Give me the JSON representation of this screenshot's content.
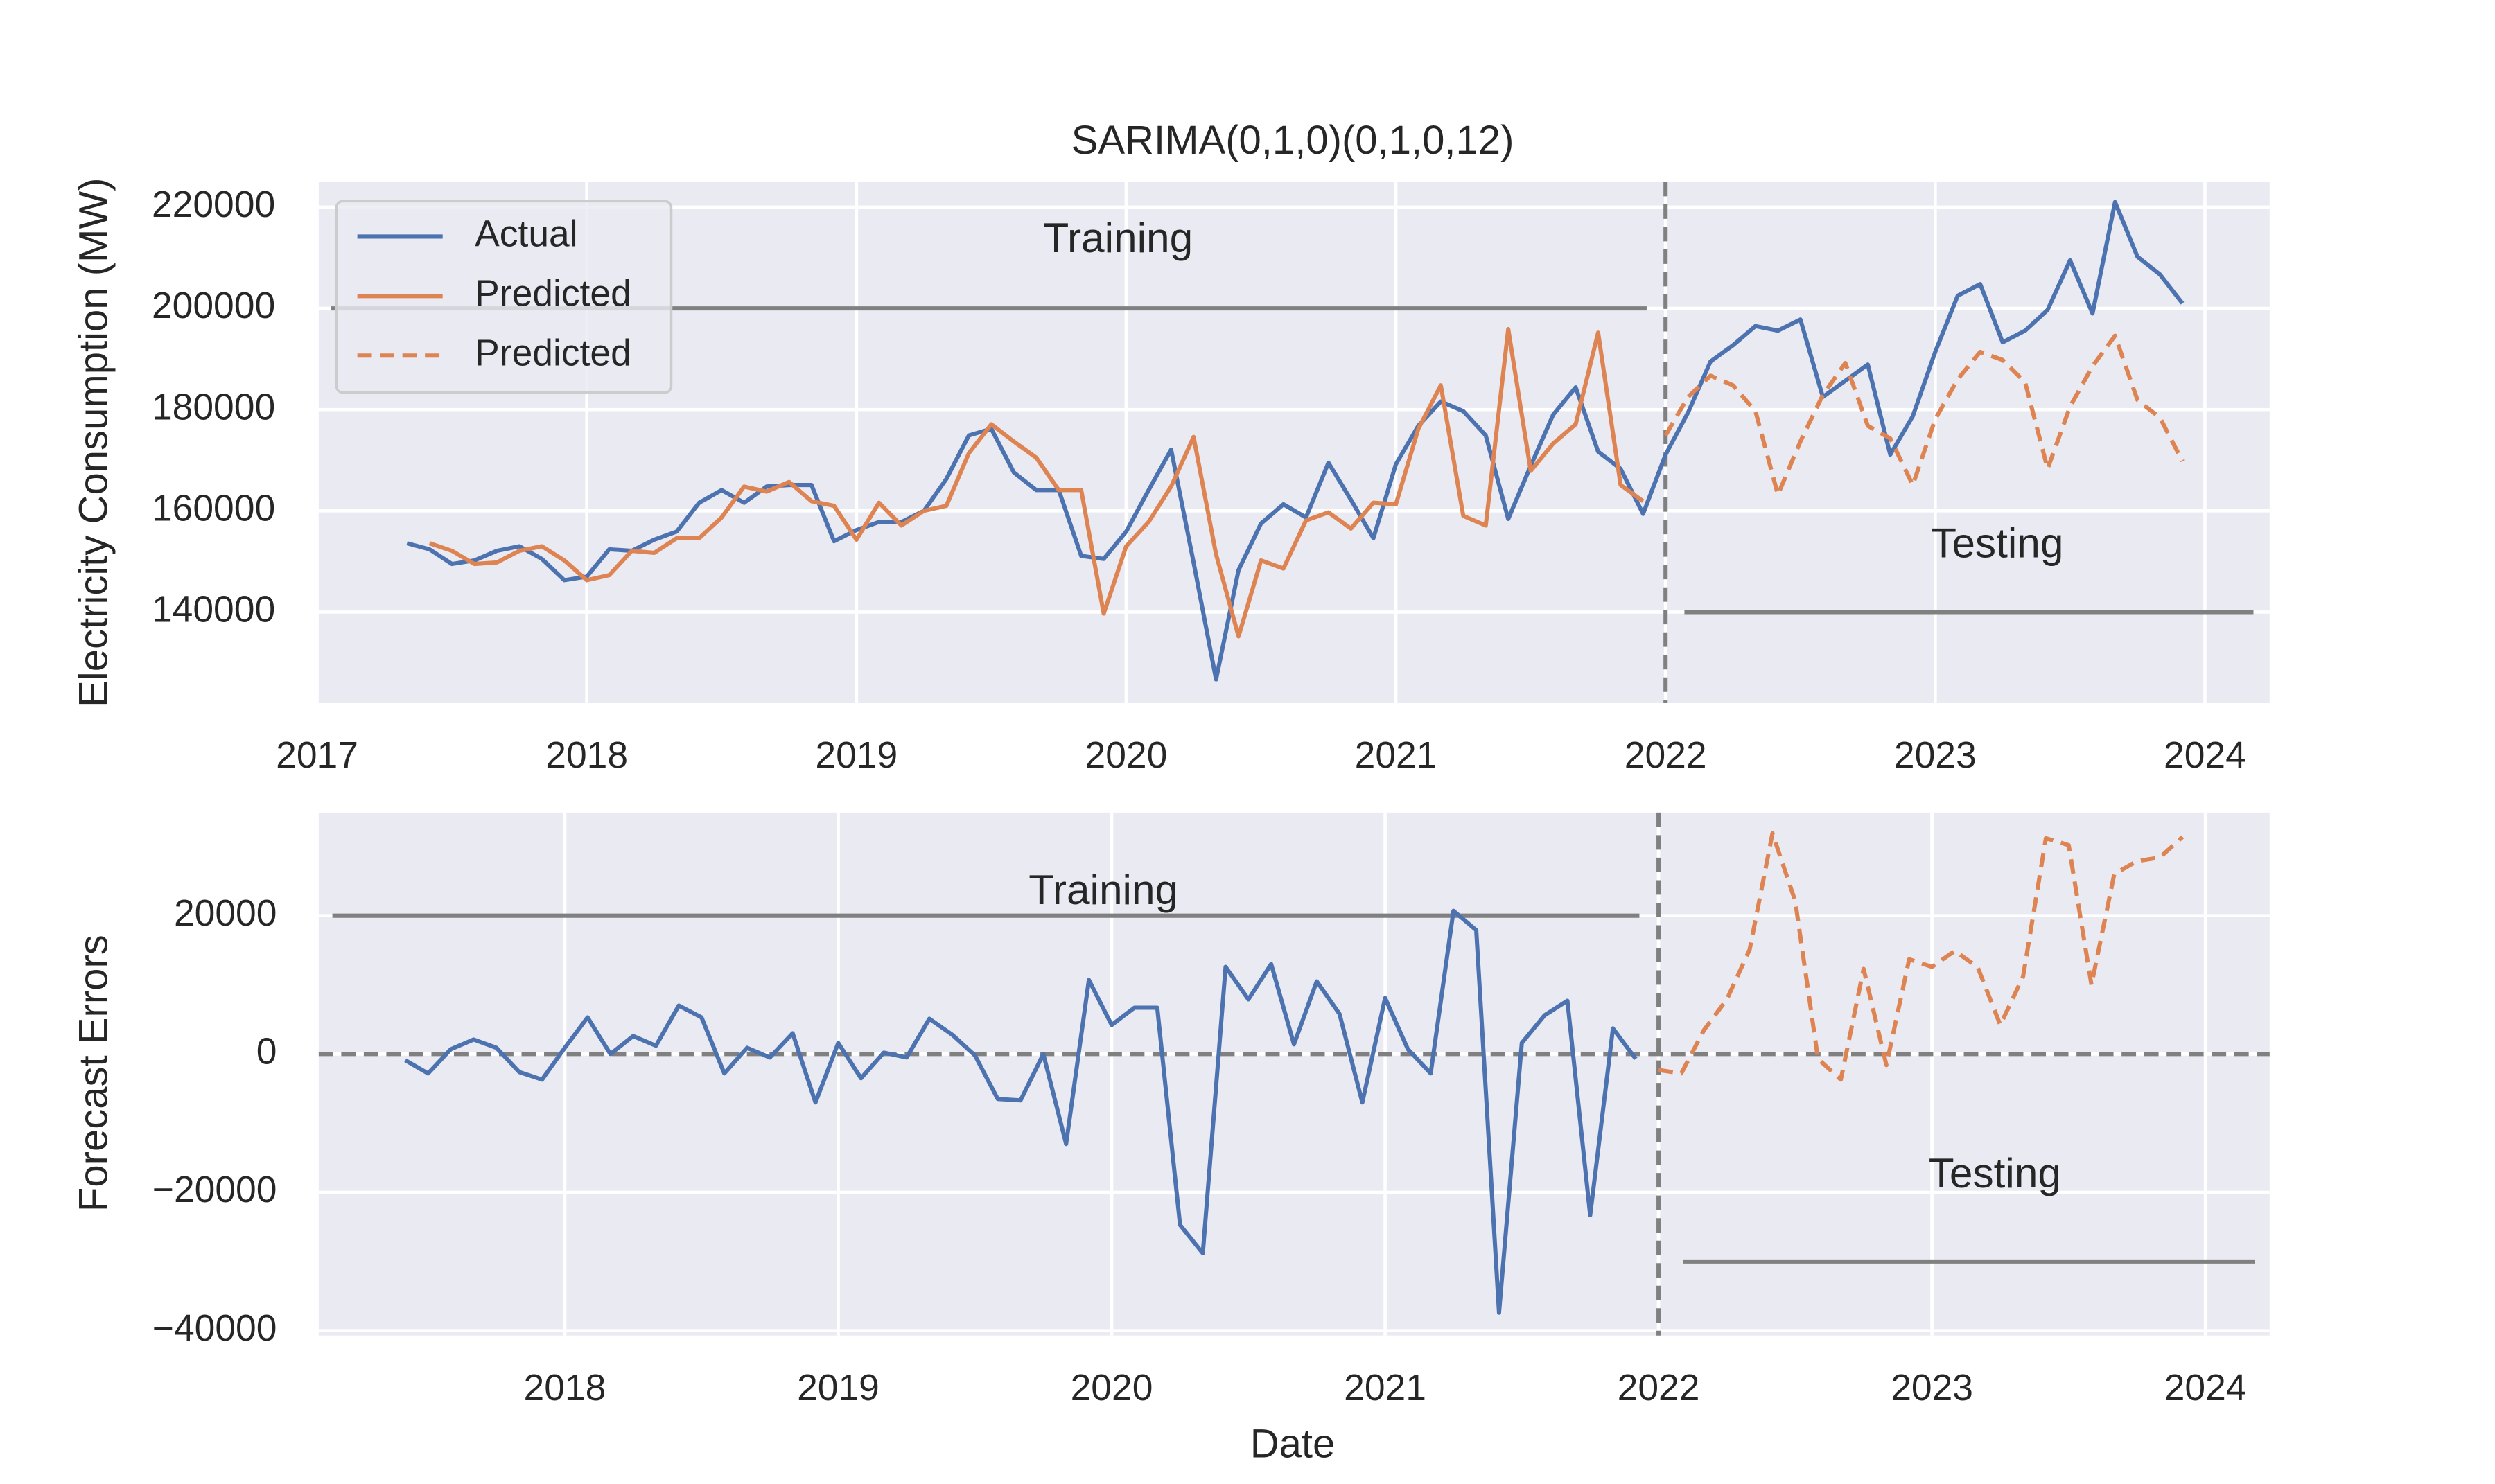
{
  "chart_data": [
    {
      "type": "line",
      "title": "SARIMA(0,1,0)(0,1,0,12)",
      "y_label": "Electricity Consumption (MW)",
      "xlim": [
        2017.0,
        2024.24
      ],
      "xticks": [
        2017,
        2018,
        2019,
        2020,
        2021,
        2022,
        2023,
        2024
      ],
      "ylim": [
        122000,
        225000
      ],
      "yticks": [
        140000,
        160000,
        180000,
        200000,
        220000
      ],
      "grid": true,
      "legend": "upper left",
      "series": [
        {
          "name": "Actual",
          "color": "#4c72b0",
          "dashed": false,
          "x": [
            2017.3333,
            2017.4167,
            2017.5,
            2017.5833,
            2017.6667,
            2017.75,
            2017.8333,
            2017.9167,
            2018.0,
            2018.0833,
            2018.1667,
            2018.25,
            2018.3333,
            2018.4167,
            2018.5,
            2018.5833,
            2018.6667,
            2018.75,
            2018.8333,
            2018.9167,
            2019.0,
            2019.0833,
            2019.1667,
            2019.25,
            2019.3333,
            2019.4167,
            2019.5,
            2019.5833,
            2019.6667,
            2019.75,
            2019.8333,
            2019.9167,
            2020.0,
            2020.0833,
            2020.1667,
            2020.25,
            2020.3333,
            2020.4167,
            2020.5,
            2020.5833,
            2020.6667,
            2020.75,
            2020.8333,
            2020.9167,
            2021.0,
            2021.0833,
            2021.1667,
            2021.25,
            2021.3333,
            2021.4167,
            2021.5,
            2021.5833,
            2021.6667,
            2021.75,
            2021.8333,
            2021.9167,
            2022.0,
            2022.0833,
            2022.1667,
            2022.25,
            2022.3333,
            2022.4167,
            2022.5,
            2022.5833,
            2022.6667,
            2022.75,
            2022.8333,
            2022.9167,
            2023.0,
            2023.0833,
            2023.1667,
            2023.25,
            2023.3333,
            2023.4167,
            2023.5,
            2023.5833,
            2023.6667,
            2023.75,
            2023.8333,
            2023.9167
          ],
          "values": [
            153600,
            152400,
            149500,
            150200,
            152100,
            153000,
            150500,
            146300,
            147000,
            152400,
            152100,
            154300,
            155900,
            161600,
            164100,
            161600,
            164800,
            165100,
            165100,
            154000,
            156200,
            157800,
            157800,
            160000,
            166300,
            174900,
            176200,
            167600,
            164100,
            164100,
            151100,
            150500,
            155900,
            164100,
            172100,
            149800,
            126700,
            148300,
            157500,
            161300,
            158700,
            169500,
            162200,
            154600,
            169200,
            176800,
            181600,
            179700,
            174900,
            158400,
            168900,
            179000,
            184400,
            171700,
            168300,
            159400,
            171100,
            179400,
            189500,
            192700,
            196500,
            195600,
            197800,
            182500,
            185700,
            188900,
            171100,
            178700,
            191400,
            202500,
            204800,
            193300,
            195600,
            199700,
            209500,
            199000,
            221000,
            210200,
            206700,
            201000
          ]
        },
        {
          "name": "Predicted",
          "color": "#dd8452",
          "dashed": false,
          "x": [
            2017.4167,
            2017.5,
            2017.5833,
            2017.6667,
            2017.75,
            2017.8333,
            2017.9167,
            2018.0,
            2018.0833,
            2018.1667,
            2018.25,
            2018.3333,
            2018.4167,
            2018.5,
            2018.5833,
            2018.6667,
            2018.75,
            2018.8333,
            2018.9167,
            2019.0,
            2019.0833,
            2019.1667,
            2019.25,
            2019.3333,
            2019.4167,
            2019.5,
            2019.5833,
            2019.6667,
            2019.75,
            2019.8333,
            2019.9167,
            2020.0,
            2020.0833,
            2020.1667,
            2020.25,
            2020.3333,
            2020.4167,
            2020.5,
            2020.5833,
            2020.6667,
            2020.75,
            2020.8333,
            2020.9167,
            2021.0,
            2021.0833,
            2021.1667,
            2021.25,
            2021.3333,
            2021.4167,
            2021.5,
            2021.5833,
            2021.6667,
            2021.75,
            2021.8333,
            2021.9167
          ],
          "values": [
            153600,
            152100,
            149500,
            149800,
            152100,
            153000,
            150200,
            146300,
            147300,
            152100,
            151700,
            154600,
            154600,
            158700,
            164800,
            163800,
            165700,
            161900,
            161000,
            154300,
            161600,
            157100,
            160000,
            161000,
            171400,
            177100,
            173700,
            170500,
            164100,
            164100,
            139700,
            153000,
            157800,
            164800,
            174600,
            151400,
            135200,
            150200,
            148600,
            158100,
            159700,
            156500,
            161600,
            161300,
            176200,
            184800,
            159000,
            157100,
            195900,
            167900,
            173300,
            177100,
            195200,
            165100,
            161900
          ]
        },
        {
          "name": "Predicted",
          "color": "#dd8452",
          "dashed": true,
          "x": [
            2022.0,
            2022.0833,
            2022.1667,
            2022.25,
            2022.3333,
            2022.4167,
            2022.5,
            2022.5833,
            2022.6667,
            2022.75,
            2022.8333,
            2022.9167,
            2023.0,
            2023.0833,
            2023.1667,
            2023.25,
            2023.3333,
            2023.4167,
            2023.5,
            2023.5833,
            2023.6667,
            2023.75,
            2023.8333,
            2023.9167
          ],
          "values": [
            174900,
            182500,
            186700,
            184800,
            179700,
            163200,
            173700,
            182900,
            189200,
            176800,
            174300,
            165100,
            178100,
            186000,
            191400,
            189800,
            185400,
            168300,
            180600,
            188600,
            194600,
            181900,
            178400,
            169800
          ]
        }
      ],
      "vlines": [
        2022
      ],
      "spans": [
        {
          "y": 200000,
          "x": [
            2017.05,
            2021.93
          ]
        },
        {
          "y": 140000,
          "x": [
            2022.07,
            2024.18
          ]
        }
      ],
      "annotations": [
        {
          "text": "Training",
          "x": 2019.97,
          "y": 213300
        },
        {
          "text": "Testing",
          "x": 2023.23,
          "y": 153000
        }
      ]
    },
    {
      "type": "line",
      "x_label": "Date",
      "y_label": "Forecast Errors",
      "xlim": [
        2017.1,
        2024.235
      ],
      "xticks": [
        2018,
        2019,
        2020,
        2021,
        2022,
        2023,
        2024
      ],
      "ylim": [
        -40700,
        34900
      ],
      "yticks": [
        {
          "value": -40000,
          "label": "−40000"
        },
        {
          "value": -20000,
          "label": "−20000"
        },
        0,
        20000
      ],
      "grid": true,
      "series": [
        {
          "color": "#4c72b0",
          "dashed": false,
          "x": [
            2017.4167,
            2017.5,
            2017.5833,
            2017.6667,
            2017.75,
            2017.8333,
            2017.9167,
            2018.0,
            2018.0833,
            2018.1667,
            2018.25,
            2018.3333,
            2018.4167,
            2018.5,
            2018.5833,
            2018.6667,
            2018.75,
            2018.8333,
            2018.9167,
            2019.0,
            2019.0833,
            2019.1667,
            2019.25,
            2019.3333,
            2019.4167,
            2019.5,
            2019.5833,
            2019.6667,
            2019.75,
            2019.8333,
            2019.9167,
            2020.0,
            2020.0833,
            2020.1667,
            2020.25,
            2020.3333,
            2020.4167,
            2020.5,
            2020.5833,
            2020.6667,
            2020.75,
            2020.8333,
            2020.9167,
            2021.0,
            2021.0833,
            2021.1667,
            2021.25,
            2021.3333,
            2021.4167,
            2021.5,
            2021.5833,
            2021.6667,
            2021.75,
            2021.8333,
            2021.9167
          ],
          "values": [
            -900,
            -2800,
            700,
            2100,
            900,
            -2600,
            -3700,
            900,
            5300,
            0,
            2600,
            1200,
            7000,
            5300,
            -2800,
            900,
            -500,
            3000,
            -7000,
            1600,
            -3500,
            200,
            -500,
            5100,
            2800,
            -200,
            -6500,
            -6700,
            0,
            -13000,
            10700,
            4200,
            6700,
            6700,
            -24700,
            -28800,
            12600,
            7900,
            13000,
            1400,
            10500,
            5800,
            -7000,
            8100,
            700,
            -2800,
            20700,
            17900,
            -37400,
            1600,
            5600,
            7700,
            -23300,
            3700,
            -700
          ]
        },
        {
          "color": "#dd8452",
          "dashed": true,
          "x": [
            2022.0,
            2022.0833,
            2022.1667,
            2022.25,
            2022.3333,
            2022.4167,
            2022.5,
            2022.5833,
            2022.6667,
            2022.75,
            2022.8333,
            2022.9167,
            2023.0,
            2023.0833,
            2023.1667,
            2023.25,
            2023.3333,
            2023.4167,
            2023.5,
            2023.5833,
            2023.6667,
            2023.75,
            2023.8333,
            2023.9167
          ],
          "values": [
            -2300,
            -2800,
            3500,
            7900,
            15100,
            31900,
            22100,
            -700,
            -3700,
            12300,
            -1600,
            13700,
            12600,
            14900,
            12600,
            4200,
            11200,
            31200,
            30200,
            10000,
            26000,
            27900,
            28400,
            31400
          ]
        }
      ],
      "vlines": [
        2022
      ],
      "hlines": [
        0
      ],
      "spans": [
        {
          "y": 20000,
          "x": [
            2017.15,
            2021.93
          ]
        },
        {
          "y": -30000,
          "x": [
            2022.09,
            2024.18
          ]
        }
      ],
      "annotations": [
        {
          "text": "Training",
          "x": 2019.97,
          "y": 23250
        },
        {
          "text": "Testing",
          "x": 2023.23,
          "y": -17700
        }
      ]
    }
  ]
}
